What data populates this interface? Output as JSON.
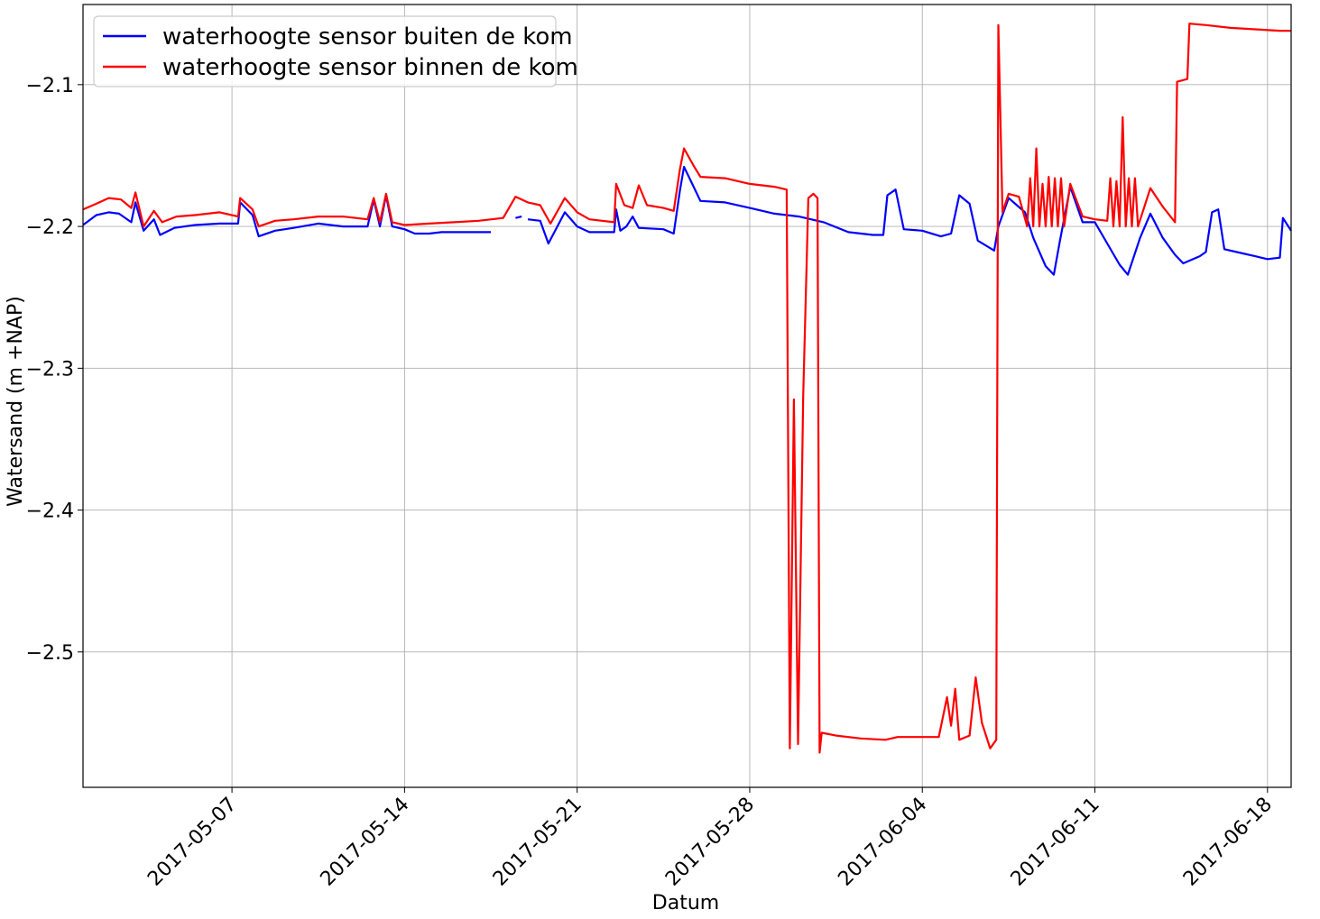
{
  "chart_data": {
    "type": "line",
    "xlabel": "Datum",
    "ylabel": "Watersand (m +NAP)",
    "x_type": "date",
    "xlim": [
      "2017-04-30T23:00",
      "2017-06-18T23:00"
    ],
    "ylim": [
      -2.5955,
      -2.0435
    ],
    "grid": true,
    "legend_position": "top-left",
    "x_ticks": [
      "2017-05-07",
      "2017-05-14",
      "2017-05-21",
      "2017-05-28",
      "2017-06-04",
      "2017-06-11",
      "2017-06-18"
    ],
    "y_ticks": [
      -2.1,
      -2.2,
      -2.3,
      -2.4,
      -2.5
    ],
    "y_tick_labels": [
      "−2.1",
      "−2.2",
      "−2.3",
      "−2.4",
      "−2.5"
    ],
    "series": [
      {
        "name": "waterhoogte sensor buiten de kom",
        "color": "#0000ff",
        "segments": [
          [
            [
              "2017-04-30T23:00",
              -2.199
            ],
            [
              "2017-05-01T12:00",
              -2.192
            ],
            [
              "2017-05-02T00:00",
              -2.19
            ],
            [
              "2017-05-02T10:00",
              -2.191
            ],
            [
              "2017-05-02T22:00",
              -2.197
            ],
            [
              "2017-05-03T02:00",
              -2.183
            ],
            [
              "2017-05-03T10:00",
              -2.203
            ],
            [
              "2017-05-03T20:00",
              -2.195
            ],
            [
              "2017-05-04T02:00",
              -2.206
            ],
            [
              "2017-05-04T16:00",
              -2.201
            ],
            [
              "2017-05-05T12:00",
              -2.199
            ],
            [
              "2017-05-06T12:00",
              -2.198
            ],
            [
              "2017-05-07T06:00",
              -2.198
            ],
            [
              "2017-05-07T08:00",
              -2.183
            ],
            [
              "2017-05-07T20:00",
              -2.192
            ],
            [
              "2017-05-08T02:00",
              -2.207
            ],
            [
              "2017-05-08T18:00",
              -2.203
            ],
            [
              "2017-05-09T12:00",
              -2.201
            ],
            [
              "2017-05-10T12:00",
              -2.198
            ],
            [
              "2017-05-11T12:00",
              -2.2
            ],
            [
              "2017-05-12T12:00",
              -2.2
            ],
            [
              "2017-05-12T18:00",
              -2.181
            ],
            [
              "2017-05-13T00:00",
              -2.2
            ],
            [
              "2017-05-13T06:00",
              -2.178
            ],
            [
              "2017-05-13T12:00",
              -2.2
            ],
            [
              "2017-05-14T00:00",
              -2.202
            ],
            [
              "2017-05-14T10:00",
              -2.205
            ],
            [
              "2017-05-15T00:00",
              -2.205
            ],
            [
              "2017-05-15T12:00",
              -2.204
            ],
            [
              "2017-05-16T12:00",
              -2.204
            ],
            [
              "2017-05-17T12:00",
              -2.204
            ]
          ],
          [
            [
              "2017-05-18T12:00",
              -2.194
            ],
            [
              "2017-05-18T18:00",
              -2.193
            ]
          ],
          [
            [
              "2017-05-19T00:00",
              -2.195
            ],
            [
              "2017-05-19T12:00",
              -2.196
            ],
            [
              "2017-05-19T20:00",
              -2.212
            ],
            [
              "2017-05-20T12:00",
              -2.19
            ],
            [
              "2017-05-21T00:00",
              -2.2
            ],
            [
              "2017-05-21T12:00",
              -2.204
            ],
            [
              "2017-05-22T12:00",
              -2.204
            ],
            [
              "2017-05-22T14:00",
              -2.188
            ],
            [
              "2017-05-22T18:00",
              -2.203
            ],
            [
              "2017-05-23T00:00",
              -2.2
            ],
            [
              "2017-05-23T06:00",
              -2.193
            ],
            [
              "2017-05-23T12:00",
              -2.201
            ],
            [
              "2017-05-24T12:00",
              -2.202
            ],
            [
              "2017-05-24T22:00",
              -2.205
            ],
            [
              "2017-05-25T04:00",
              -2.175
            ],
            [
              "2017-05-25T08:00",
              -2.158
            ],
            [
              "2017-05-25T18:00",
              -2.173
            ],
            [
              "2017-05-26T00:00",
              -2.182
            ],
            [
              "2017-05-27T00:00",
              -2.183
            ],
            [
              "2017-05-28T00:00",
              -2.187
            ],
            [
              "2017-05-29T00:00",
              -2.191
            ],
            [
              "2017-05-30T00:00",
              -2.193
            ],
            [
              "2017-05-31T00:00",
              -2.197
            ],
            [
              "2017-06-01T00:00",
              -2.204
            ],
            [
              "2017-06-02T00:00",
              -2.206
            ],
            [
              "2017-06-02T10:00",
              -2.206
            ],
            [
              "2017-06-02T14:00",
              -2.178
            ],
            [
              "2017-06-02T22:00",
              -2.174
            ],
            [
              "2017-06-03T06:00",
              -2.202
            ],
            [
              "2017-06-04T00:00",
              -2.203
            ],
            [
              "2017-06-04T18:00",
              -2.207
            ],
            [
              "2017-06-05T04:00",
              -2.205
            ],
            [
              "2017-06-05T12:00",
              -2.178
            ],
            [
              "2017-06-05T22:00",
              -2.184
            ],
            [
              "2017-06-06T06:00",
              -2.21
            ],
            [
              "2017-06-06T22:00",
              -2.217
            ],
            [
              "2017-06-07T02:00",
              -2.2
            ],
            [
              "2017-06-07T12:00",
              -2.18
            ],
            [
              "2017-06-07T20:00",
              -2.185
            ],
            [
              "2017-06-08T04:00",
              -2.19
            ],
            [
              "2017-06-08T12:00",
              -2.208
            ],
            [
              "2017-06-09T00:00",
              -2.228
            ],
            [
              "2017-06-09T08:00",
              -2.234
            ],
            [
              "2017-06-09T14:00",
              -2.21
            ],
            [
              "2017-06-10T00:00",
              -2.172
            ],
            [
              "2017-06-10T12:00",
              -2.197
            ],
            [
              "2017-06-11T00:00",
              -2.197
            ],
            [
              "2017-06-11T12:00",
              -2.212
            ],
            [
              "2017-06-12T00:00",
              -2.227
            ],
            [
              "2017-06-12T08:00",
              -2.234
            ],
            [
              "2017-06-12T20:00",
              -2.208
            ],
            [
              "2017-06-13T06:00",
              -2.191
            ],
            [
              "2017-06-13T18:00",
              -2.208
            ],
            [
              "2017-06-14T06:00",
              -2.22
            ],
            [
              "2017-06-14T14:00",
              -2.226
            ],
            [
              "2017-06-15T06:00",
              -2.221
            ],
            [
              "2017-06-15T12:00",
              -2.218
            ],
            [
              "2017-06-15T18:00",
              -2.19
            ],
            [
              "2017-06-16T00:00",
              -2.188
            ],
            [
              "2017-06-16T06:00",
              -2.216
            ],
            [
              "2017-06-17T00:00",
              -2.219
            ],
            [
              "2017-06-17T12:00",
              -2.221
            ],
            [
              "2017-06-18T00:00",
              -2.223
            ],
            [
              "2017-06-18T12:00",
              -2.222
            ],
            [
              "2017-06-18T15:00",
              -2.194
            ],
            [
              "2017-06-18T23:00",
              -2.203
            ]
          ]
        ]
      },
      {
        "name": "waterhoogte sensor binnen de kom",
        "color": "#ff0000",
        "segments": [
          [
            [
              "2017-04-30T23:00",
              -2.188
            ],
            [
              "2017-05-01T12:00",
              -2.184
            ],
            [
              "2017-05-02T00:00",
              -2.18
            ],
            [
              "2017-05-02T12:00",
              -2.181
            ],
            [
              "2017-05-02T22:00",
              -2.187
            ],
            [
              "2017-05-03T02:00",
              -2.176
            ],
            [
              "2017-05-03T10:00",
              -2.2
            ],
            [
              "2017-05-03T20:00",
              -2.189
            ],
            [
              "2017-05-04T04:00",
              -2.197
            ],
            [
              "2017-05-04T18:00",
              -2.193
            ],
            [
              "2017-05-05T12:00",
              -2.192
            ],
            [
              "2017-05-06T12:00",
              -2.19
            ],
            [
              "2017-05-07T06:00",
              -2.193
            ],
            [
              "2017-05-07T08:00",
              -2.18
            ],
            [
              "2017-05-07T20:00",
              -2.188
            ],
            [
              "2017-05-08T02:00",
              -2.2
            ],
            [
              "2017-05-08T18:00",
              -2.196
            ],
            [
              "2017-05-09T12:00",
              -2.195
            ],
            [
              "2017-05-10T12:00",
              -2.193
            ],
            [
              "2017-05-11T12:00",
              -2.193
            ],
            [
              "2017-05-12T12:00",
              -2.195
            ],
            [
              "2017-05-12T18:00",
              -2.18
            ],
            [
              "2017-05-13T00:00",
              -2.197
            ],
            [
              "2017-05-13T06:00",
              -2.177
            ],
            [
              "2017-05-13T12:00",
              -2.197
            ],
            [
              "2017-05-14T00:00",
              -2.199
            ],
            [
              "2017-05-15T00:00",
              -2.198
            ],
            [
              "2017-05-16T00:00",
              -2.197
            ],
            [
              "2017-05-17T00:00",
              -2.196
            ],
            [
              "2017-05-18T00:00",
              -2.194
            ],
            [
              "2017-05-18T12:00",
              -2.179
            ],
            [
              "2017-05-19T00:00",
              -2.183
            ],
            [
              "2017-05-19T12:00",
              -2.185
            ],
            [
              "2017-05-19T22:00",
              -2.198
            ],
            [
              "2017-05-20T12:00",
              -2.18
            ],
            [
              "2017-05-21T00:00",
              -2.19
            ],
            [
              "2017-05-21T12:00",
              -2.195
            ],
            [
              "2017-05-22T12:00",
              -2.197
            ],
            [
              "2017-05-22T14:00",
              -2.17
            ],
            [
              "2017-05-22T22:00",
              -2.185
            ],
            [
              "2017-05-23T06:00",
              -2.187
            ],
            [
              "2017-05-23T12:00",
              -2.171
            ],
            [
              "2017-05-23T20:00",
              -2.185
            ],
            [
              "2017-05-24T12:00",
              -2.187
            ],
            [
              "2017-05-24T22:00",
              -2.189
            ],
            [
              "2017-05-25T04:00",
              -2.16
            ],
            [
              "2017-05-25T08:00",
              -2.145
            ],
            [
              "2017-05-25T18:00",
              -2.158
            ],
            [
              "2017-05-26T00:00",
              -2.165
            ],
            [
              "2017-05-27T00:00",
              -2.166
            ],
            [
              "2017-05-28T00:00",
              -2.17
            ],
            [
              "2017-05-29T00:00",
              -2.172
            ],
            [
              "2017-05-29T12:00",
              -2.174
            ],
            [
              "2017-05-29T15:00",
              -2.568
            ],
            [
              "2017-05-29T19:00",
              -2.322
            ],
            [
              "2017-05-29T23:00",
              -2.565
            ],
            [
              "2017-05-30T04:00",
              -2.32
            ],
            [
              "2017-05-30T09:00",
              -2.18
            ],
            [
              "2017-05-30T14:00",
              -2.177
            ],
            [
              "2017-05-30T18:00",
              -2.18
            ],
            [
              "2017-05-30T20:00",
              -2.571
            ],
            [
              "2017-05-30T22:00",
              -2.557
            ],
            [
              "2017-05-31T12:00",
              -2.559
            ],
            [
              "2017-06-01T12:00",
              -2.561
            ],
            [
              "2017-06-02T12:00",
              -2.562
            ],
            [
              "2017-06-03T00:00",
              -2.56
            ],
            [
              "2017-06-04T12:00",
              -2.56
            ],
            [
              "2017-06-04T16:00",
              -2.56
            ],
            [
              "2017-06-05T00:00",
              -2.532
            ],
            [
              "2017-06-05T04:00",
              -2.552
            ],
            [
              "2017-06-05T08:00",
              -2.526
            ],
            [
              "2017-06-05T12:00",
              -2.562
            ],
            [
              "2017-06-05T22:00",
              -2.559
            ],
            [
              "2017-06-06T04:00",
              -2.518
            ],
            [
              "2017-06-06T10:00",
              -2.55
            ],
            [
              "2017-06-06T18:00",
              -2.568
            ],
            [
              "2017-06-07T00:00",
              -2.562
            ],
            [
              "2017-06-07T02:00",
              -2.058
            ],
            [
              "2017-06-07T06:00",
              -2.19
            ],
            [
              "2017-06-07T12:00",
              -2.177
            ],
            [
              "2017-06-07T22:00",
              -2.179
            ],
            [
              "2017-06-08T06:00",
              -2.2
            ],
            [
              "2017-06-08T09:00",
              -2.166
            ],
            [
              "2017-06-08T12:00",
              -2.2
            ],
            [
              "2017-06-08T15:00",
              -2.145
            ],
            [
              "2017-06-08T18:00",
              -2.2
            ],
            [
              "2017-06-08T21:00",
              -2.17
            ],
            [
              "2017-06-09T00:00",
              -2.2
            ],
            [
              "2017-06-09T03:00",
              -2.165
            ],
            [
              "2017-06-09T06:00",
              -2.2
            ],
            [
              "2017-06-09T09:00",
              -2.166
            ],
            [
              "2017-06-09T12:00",
              -2.2
            ],
            [
              "2017-06-09T15:00",
              -2.166
            ],
            [
              "2017-06-09T18:00",
              -2.2
            ],
            [
              "2017-06-10T00:00",
              -2.17
            ],
            [
              "2017-06-10T12:00",
              -2.193
            ],
            [
              "2017-06-11T00:00",
              -2.195
            ],
            [
              "2017-06-11T12:00",
              -2.196
            ],
            [
              "2017-06-11T15:00",
              -2.166
            ],
            [
              "2017-06-11T18:00",
              -2.2
            ],
            [
              "2017-06-11T21:00",
              -2.168
            ],
            [
              "2017-06-12T00:00",
              -2.2
            ],
            [
              "2017-06-12T03:00",
              -2.123
            ],
            [
              "2017-06-12T06:00",
              -2.2
            ],
            [
              "2017-06-12T09:00",
              -2.166
            ],
            [
              "2017-06-12T12:00",
              -2.2
            ],
            [
              "2017-06-12T15:00",
              -2.166
            ],
            [
              "2017-06-12T18:00",
              -2.2
            ],
            [
              "2017-06-13T06:00",
              -2.173
            ],
            [
              "2017-06-13T18:00",
              -2.186
            ],
            [
              "2017-06-14T06:00",
              -2.197
            ],
            [
              "2017-06-14T08:00",
              -2.098
            ],
            [
              "2017-06-14T18:00",
              -2.096
            ],
            [
              "2017-06-14T20:00",
              -2.057
            ],
            [
              "2017-06-15T12:00",
              -2.058
            ],
            [
              "2017-06-16T12:00",
              -2.06
            ],
            [
              "2017-06-17T12:00",
              -2.061
            ],
            [
              "2017-06-18T12:00",
              -2.062
            ],
            [
              "2017-06-18T23:00",
              -2.062
            ]
          ]
        ]
      }
    ]
  }
}
